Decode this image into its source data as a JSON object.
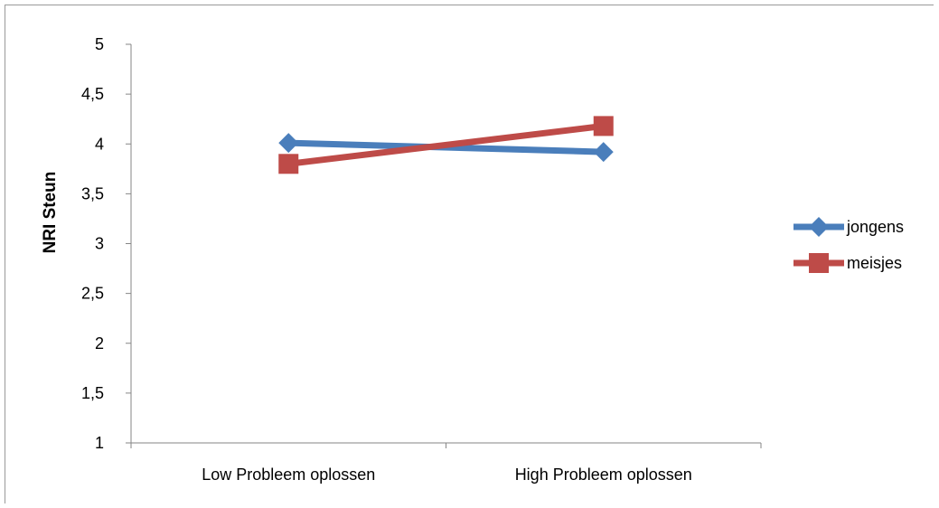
{
  "chart_data": {
    "type": "line",
    "title": "",
    "xlabel": "",
    "ylabel": "NRI Steun",
    "categories": [
      "Low Probleem oplossen",
      "High Probleem oplossen"
    ],
    "ylim": [
      1,
      5
    ],
    "yticks": [
      "1",
      "1,5",
      "2",
      "2,5",
      "3",
      "3,5",
      "4",
      "4,5",
      "5"
    ],
    "ytick_values": [
      1,
      1.5,
      2,
      2.5,
      3,
      3.5,
      4,
      4.5,
      5
    ],
    "grid": false,
    "legend_position": "right",
    "series": [
      {
        "name": "jongens",
        "values": [
          4.01,
          3.92
        ],
        "color": "#4a7ebb",
        "marker": "diamond"
      },
      {
        "name": "meisjes",
        "values": [
          3.8,
          4.18
        ],
        "color": "#be4b48",
        "marker": "square"
      }
    ]
  }
}
